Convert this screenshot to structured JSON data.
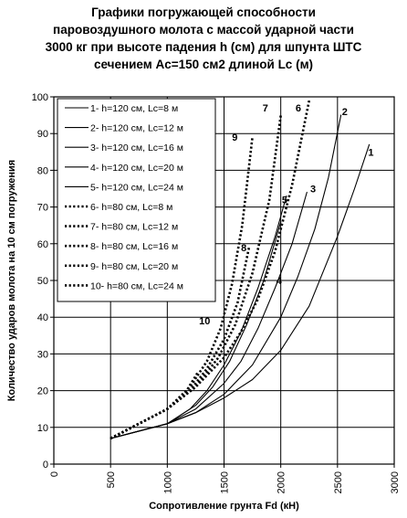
{
  "chart_data": {
    "type": "line",
    "title_lines": [
      "Графики погружающей способности",
      "паровоздушного молота с массой ударной части",
      "3000 кг при высоте падения h (см) для шпунта ШТС",
      "сечением Ac=150 см2  длиной Lc (м)"
    ],
    "xlabel": "Сопротивление грунта Fd (кН)",
    "ylabel": "Количество ударов молота на 10 см погружения",
    "xlim": [
      0,
      3000
    ],
    "ylim": [
      0,
      100
    ],
    "xticks": [
      "0",
      "500",
      "1000",
      "1500",
      "2000",
      "2500",
      "3000"
    ],
    "yticks": [
      "0",
      "10",
      "20",
      "30",
      "40",
      "50",
      "60",
      "70",
      "80",
      "90",
      "100"
    ],
    "grid": true,
    "legend_position": "top-left",
    "series": [
      {
        "name": "1- h=120 см, Lc=8 м",
        "label": "1",
        "style": "solid",
        "x": [
          500,
          1000,
          1250,
          1500,
          1750,
          2000,
          2250,
          2500,
          2650,
          2780
        ],
        "y": [
          7,
          11,
          14,
          18,
          23,
          31,
          43,
          62,
          75,
          87
        ]
      },
      {
        "name": "2- h=120 см, Lc=12 м",
        "label": "2",
        "style": "solid",
        "x": [
          500,
          1000,
          1250,
          1500,
          1750,
          2000,
          2150,
          2300,
          2420,
          2530
        ],
        "y": [
          7,
          11,
          14,
          19,
          27,
          40,
          51,
          64,
          78,
          95
        ]
      },
      {
        "name": "3- h=120 см, Lc=16 м",
        "label": "3",
        "style": "solid",
        "x": [
          500,
          1000,
          1250,
          1500,
          1650,
          1800,
          1950,
          2100,
          2230
        ],
        "y": [
          7,
          11,
          15,
          22,
          28,
          37,
          48,
          60,
          74
        ]
      },
      {
        "name": "4- h=120 см, Lc=20 м",
        "label": "4",
        "style": "solid",
        "x": [
          500,
          1000,
          1250,
          1400,
          1550,
          1700,
          1850,
          2000
        ],
        "y": [
          7,
          11,
          16,
          21,
          28,
          38,
          50,
          66
        ]
      },
      {
        "name": "5- h=120 см, Lc=24 м",
        "label": "5",
        "style": "solid",
        "x": [
          500,
          1000,
          1200,
          1350,
          1500,
          1650,
          1800,
          1950,
          2050
        ],
        "y": [
          7,
          11,
          15,
          20,
          27,
          36,
          48,
          62,
          73
        ]
      },
      {
        "name": "6- h=80 см, Lc=8 м",
        "label": "6",
        "style": "dotted",
        "x": [
          500,
          1000,
          1250,
          1500,
          1650,
          1800,
          1950,
          2100,
          2250
        ],
        "y": [
          7,
          15,
          21,
          29,
          36,
          45,
          58,
          76,
          99
        ]
      },
      {
        "name": "7- h=80 см, Lc=12 м",
        "label": "7",
        "style": "dotted",
        "x": [
          500,
          1000,
          1250,
          1450,
          1600,
          1750,
          1900,
          2000
        ],
        "y": [
          7,
          15,
          21,
          29,
          38,
          52,
          72,
          95
        ]
      },
      {
        "name": "8- h=80 см, Lc=16 м",
        "label": "8",
        "style": "dotted",
        "x": [
          500,
          1000,
          1200,
          1350,
          1500,
          1620,
          1720
        ],
        "y": [
          7,
          15,
          20,
          26,
          34,
          44,
          59
        ]
      },
      {
        "name": "9- h=80 см, Lc=20 м",
        "label": "9",
        "style": "dotted",
        "x": [
          500,
          1000,
          1200,
          1350,
          1470,
          1570,
          1660,
          1750
        ],
        "y": [
          7,
          15,
          21,
          28,
          37,
          49,
          65,
          89
        ]
      },
      {
        "name": "10- h=80 см, Lc=24 м",
        "label": "10",
        "style": "dotted",
        "x": [
          500,
          1000,
          1150,
          1270
        ],
        "y": [
          7,
          15,
          19,
          25
        ]
      }
    ],
    "curve_labels": [
      {
        "text": "1",
        "x": 2770,
        "y": 84
      },
      {
        "text": "2",
        "x": 2540,
        "y": 95
      },
      {
        "text": "3",
        "x": 2260,
        "y": 74
      },
      {
        "text": "4",
        "x": 1960,
        "y": 49
      },
      {
        "text": "5",
        "x": 2010,
        "y": 71
      },
      {
        "text": "6",
        "x": 2130,
        "y": 96
      },
      {
        "text": "7",
        "x": 1840,
        "y": 96
      },
      {
        "text": "8",
        "x": 1650,
        "y": 58
      },
      {
        "text": "9",
        "x": 1570,
        "y": 88
      },
      {
        "text": "10",
        "x": 1280,
        "y": 38
      }
    ]
  }
}
